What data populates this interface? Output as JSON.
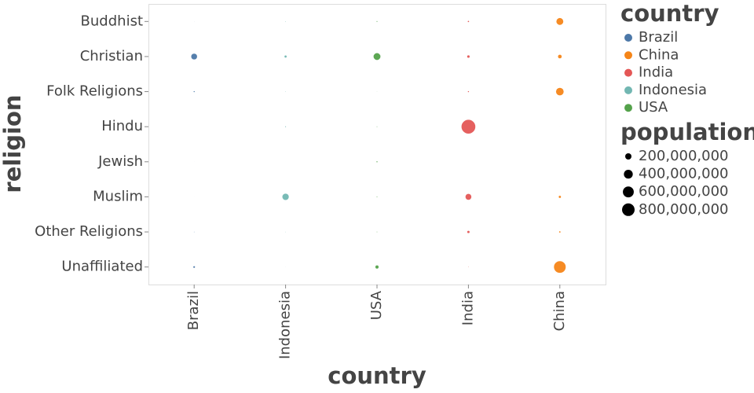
{
  "chart_data": {
    "type": "bubble",
    "x_title": "country",
    "y_title": "religion",
    "x_categories": [
      "Brazil",
      "Indonesia",
      "USA",
      "India",
      "China"
    ],
    "y_categories": [
      "Buddhist",
      "Christian",
      "Folk Religions",
      "Hindu",
      "Jewish",
      "Muslim",
      "Other Religions",
      "Unaffiliated"
    ],
    "legend_title": "country",
    "series": [
      {
        "name": "Brazil",
        "color": "#4c78a8",
        "values": [
          240000,
          175770000,
          5540000,
          5000,
          110000,
          40000,
          1350000,
          15410000
        ]
      },
      {
        "name": "China",
        "color": "#f58518",
        "values": [
          244130000,
          68410000,
          294320000,
          20000,
          5000,
          24690000,
          9690000,
          700680000
        ]
      },
      {
        "name": "India",
        "color": "#e45756",
        "values": [
          9250000,
          31130000,
          5840000,
          973750000,
          10000,
          176200000,
          27560000,
          1190000
        ]
      },
      {
        "name": "Indonesia",
        "color": "#72b7b2",
        "values": [
          1720000,
          23660000,
          1040000,
          4050000,
          5000,
          209120000,
          840000,
          240000
        ]
      },
      {
        "name": "USA",
        "color": "#54a24b",
        "values": [
          3570000,
          243060000,
          630000,
          1790000,
          5690000,
          2770000,
          1900000,
          50980000
        ]
      }
    ],
    "size_legend": {
      "title": "population",
      "values": [
        {
          "value": 200000000,
          "label": "200,000,000"
        },
        {
          "value": 400000000,
          "label": "400,000,000"
        },
        {
          "value": 600000000,
          "label": "600,000,000"
        },
        {
          "value": 800000000,
          "label": "800,000,000"
        }
      ]
    }
  }
}
